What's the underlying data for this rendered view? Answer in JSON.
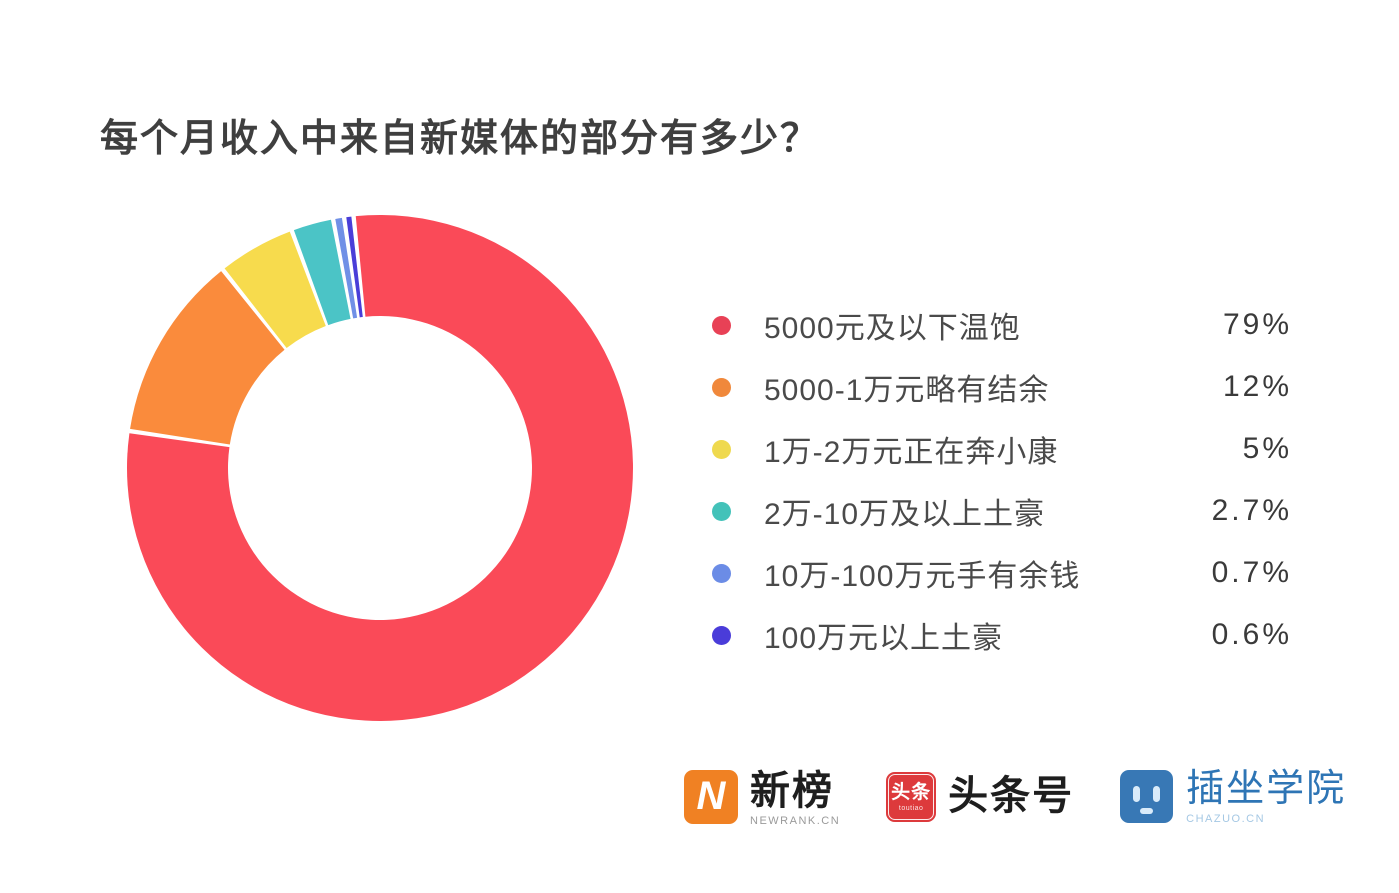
{
  "title": "每个月收入中来自新媒体的部分有多少？",
  "chart_data": {
    "type": "pie",
    "subtype": "donut",
    "title": "每个月收入中来自新媒体的部分有多少？",
    "categories": [
      "5000元及以下温饱",
      "5000-1万元略有结余",
      "1万-2万元正在奔小康",
      "2万-10万及以上土豪",
      "10万-100万元手有余钱",
      "100万元以上土豪"
    ],
    "values": [
      79,
      12,
      5,
      2.7,
      0.7,
      0.6
    ],
    "value_labels": [
      "79%",
      "12%",
      "5%",
      "2.7%",
      "0.7%",
      "0.6%"
    ],
    "colors": [
      "#FA4A58",
      "#FA8B3C",
      "#F7DB4D",
      "#4BC4C6",
      "#7090E6",
      "#4A3ED8"
    ],
    "start_angle_deg": -6,
    "slice_gap_deg": 1.0,
    "donut_hole_ratio": 0.6,
    "legend_position": "right",
    "grid": false
  },
  "legend": {
    "items": [
      {
        "label": "5000元及以下温饱",
        "value": "79%",
        "color": "#E84156"
      },
      {
        "label": "5000-1万元略有结余",
        "value": "12%",
        "color": "#F0883B"
      },
      {
        "label": "1万-2万元正在奔小康",
        "value": "5%",
        "color": "#EFD94E"
      },
      {
        "label": "2万-10万及以上土豪",
        "value": "2.7%",
        "color": "#43C2B9"
      },
      {
        "label": "10万-100万元手有余钱",
        "value": "0.7%",
        "color": "#6B8CE6"
      },
      {
        "label": "100万元以上土豪",
        "value": "0.6%",
        "color": "#4A3CD9"
      }
    ]
  },
  "footer": {
    "newrank": {
      "name": "新榜",
      "subtext": "NEWRANK.CN",
      "icon_letter": "N",
      "badge_color": "#F08123"
    },
    "toutiao": {
      "name": "头条号",
      "badge_text": "头条",
      "badge_sub": "toutiao",
      "badge_color": "#DD3A3C"
    },
    "chazuo": {
      "name": "插坐学院",
      "subtext": "CHAZUO.CN",
      "badge_color": "#3878B5"
    }
  }
}
